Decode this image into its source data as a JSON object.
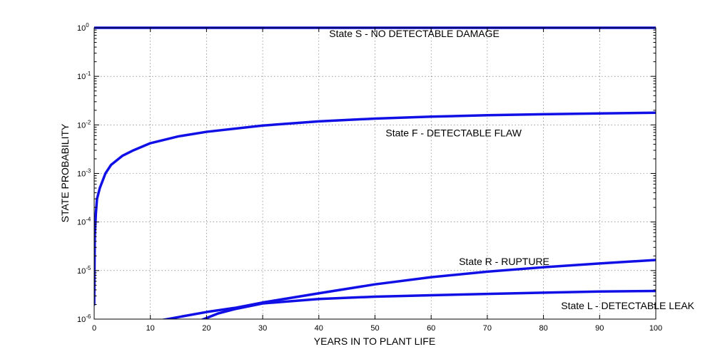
{
  "chart_data": {
    "type": "line",
    "title": "",
    "xlabel": "YEARS IN TO PLANT LIFE",
    "ylabel": "STATE PROBABILITY",
    "xlim": [
      0,
      100
    ],
    "ylim": [
      1e-06,
      1
    ],
    "yscale": "log",
    "grid": true,
    "legend": "none",
    "line_color": "#1010e6",
    "x_ticks": [
      0,
      10,
      20,
      30,
      40,
      50,
      60,
      70,
      80,
      90,
      100
    ],
    "x_tick_labels": [
      "0",
      "10",
      "20",
      "30",
      "40",
      "50",
      "60",
      "70",
      "80",
      "90",
      "100"
    ],
    "y_ticks": [
      {
        "value": 1,
        "base": "10",
        "exp": "0"
      },
      {
        "value": 0.1,
        "base": "10",
        "exp": "-1"
      },
      {
        "value": 0.01,
        "base": "10",
        "exp": "-2"
      },
      {
        "value": 0.001,
        "base": "10",
        "exp": "-3"
      },
      {
        "value": 0.0001,
        "base": "10",
        "exp": "-4"
      },
      {
        "value": 1e-05,
        "base": "10",
        "exp": "-5"
      },
      {
        "value": 1e-06,
        "base": "10",
        "exp": "-6"
      }
    ],
    "series": [
      {
        "key": "S",
        "x": [
          0,
          100
        ],
        "y": [
          1,
          1
        ]
      },
      {
        "key": "F",
        "x": [
          0,
          0.1,
          0.3,
          0.5,
          1,
          2,
          3,
          5,
          7,
          10,
          15,
          20,
          30,
          40,
          50,
          60,
          70,
          80,
          90,
          100
        ],
        "y": [
          2e-06,
          5e-05,
          0.00015,
          0.0003,
          0.0005,
          0.001,
          0.0015,
          0.0023,
          0.003,
          0.0042,
          0.0058,
          0.0072,
          0.0097,
          0.0118,
          0.0135,
          0.0148,
          0.0158,
          0.0166,
          0.0172,
          0.0178
        ]
      },
      {
        "key": "R",
        "x": [
          12,
          15,
          20,
          25,
          30,
          40,
          50,
          60,
          70,
          80,
          90,
          100
        ],
        "y": [
          9.5e-07,
          1.1e-06,
          1.4e-06,
          1.7e-06,
          2.2e-06,
          3.4e-06,
          5.2e-06,
          7.3e-06,
          9.5e-06,
          1.17e-05,
          1.4e-05,
          1.65e-05
        ]
      },
      {
        "key": "L",
        "x": [
          19,
          20,
          22,
          25,
          30,
          40,
          50,
          60,
          70,
          80,
          90,
          100
        ],
        "y": [
          9.5e-07,
          1.05e-06,
          1.3e-06,
          1.6e-06,
          2.1e-06,
          2.6e-06,
          2.9e-06,
          3.1e-06,
          3.3e-06,
          3.5e-06,
          3.7e-06,
          3.8e-06
        ]
      }
    ],
    "annotations": [
      {
        "key": "S",
        "text": "State S - NO DETECTABLE DAMAGE",
        "x": 57,
        "y": 0.65
      },
      {
        "key": "F",
        "text": "State F - DETECTABLE FLAW",
        "x": 64,
        "y": 0.0058
      },
      {
        "key": "R",
        "text": "State R - RUPTURE",
        "x": 73,
        "y": 1.3e-05
      },
      {
        "key": "L",
        "text": "State L - DETECTABLE LEAK",
        "x": 95,
        "y": 1.6e-06
      }
    ]
  }
}
